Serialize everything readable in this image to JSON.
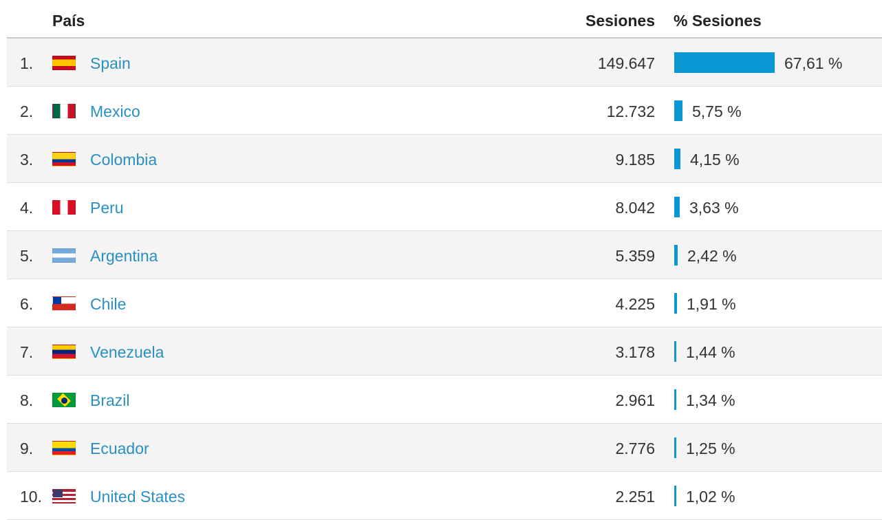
{
  "header": {
    "country": "País",
    "sessions": "Sesiones",
    "pct_sessions": "% Sesiones"
  },
  "colors": {
    "bar": "#0a97d4",
    "link": "#2a8fc1"
  },
  "rows": [
    {
      "rank": "1.",
      "flag": "spain-flag-icon",
      "country": "Spain",
      "sessions": "149.647",
      "pct": "67,61 %",
      "share": 67.61
    },
    {
      "rank": "2.",
      "flag": "mexico-flag-icon",
      "country": "Mexico",
      "sessions": "12.732",
      "pct": "5,75 %",
      "share": 5.75
    },
    {
      "rank": "3.",
      "flag": "colombia-flag-icon",
      "country": "Colombia",
      "sessions": "9.185",
      "pct": "4,15 %",
      "share": 4.15
    },
    {
      "rank": "4.",
      "flag": "peru-flag-icon",
      "country": "Peru",
      "sessions": "8.042",
      "pct": "3,63 %",
      "share": 3.63
    },
    {
      "rank": "5.",
      "flag": "argentina-flag-icon",
      "country": "Argentina",
      "sessions": "5.359",
      "pct": "2,42 %",
      "share": 2.42
    },
    {
      "rank": "6.",
      "flag": "chile-flag-icon",
      "country": "Chile",
      "sessions": "4.225",
      "pct": "1,91 %",
      "share": 1.91
    },
    {
      "rank": "7.",
      "flag": "venezuela-flag-icon",
      "country": "Venezuela",
      "sessions": "3.178",
      "pct": "1,44 %",
      "share": 1.44
    },
    {
      "rank": "8.",
      "flag": "brazil-flag-icon",
      "country": "Brazil",
      "sessions": "2.961",
      "pct": "1,34 %",
      "share": 1.34
    },
    {
      "rank": "9.",
      "flag": "ecuador-flag-icon",
      "country": "Ecuador",
      "sessions": "2.776",
      "pct": "1,25 %",
      "share": 1.25
    },
    {
      "rank": "10.",
      "flag": "united-states-flag-icon",
      "country": "United States",
      "sessions": "2.251",
      "pct": "1,02 %",
      "share": 1.02
    }
  ]
}
